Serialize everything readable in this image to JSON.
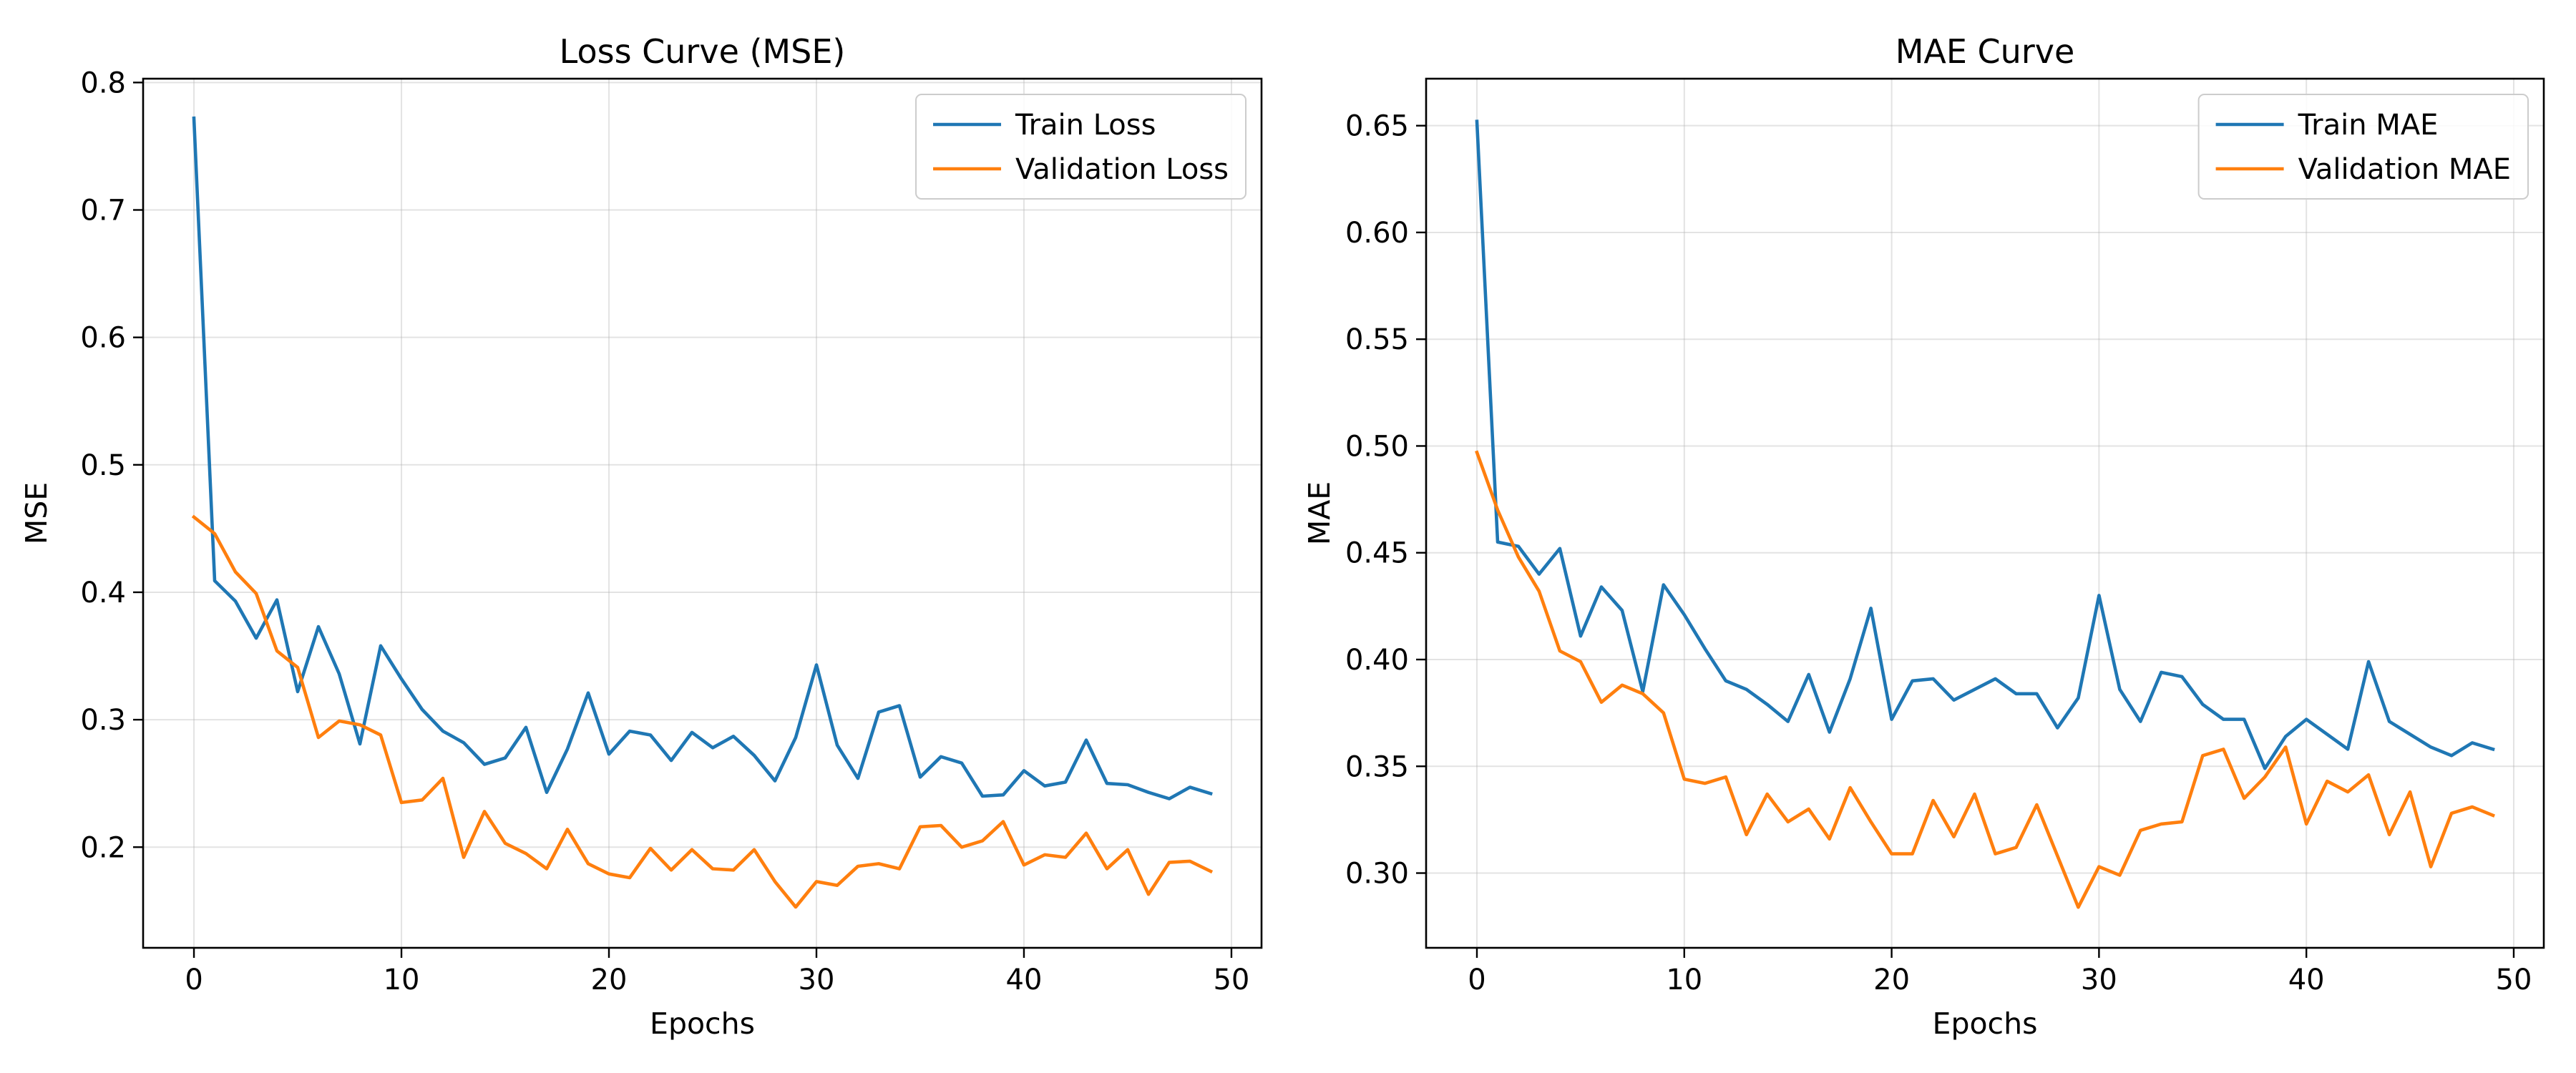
{
  "colors": {
    "train": "#1f77b4",
    "validation": "#ff7f0e"
  },
  "chart_data": [
    {
      "type": "line",
      "title": "Loss Curve (MSE)",
      "xlabel": "Epochs",
      "ylabel": "MSE",
      "xlim": [
        -2.45,
        51.45
      ],
      "ylim": [
        0.121,
        0.803
      ],
      "xticks": [
        0,
        10,
        20,
        30,
        40,
        50
      ],
      "yticks": [
        0.2,
        0.3,
        0.4,
        0.5,
        0.6,
        0.7,
        0.8
      ],
      "tick_decimals": 1,
      "grid": true,
      "legend_position": "top-right",
      "x": [
        0,
        1,
        2,
        3,
        4,
        5,
        6,
        7,
        8,
        9,
        10,
        11,
        12,
        13,
        14,
        15,
        16,
        17,
        18,
        19,
        20,
        21,
        22,
        23,
        24,
        25,
        26,
        27,
        28,
        29,
        30,
        31,
        32,
        33,
        34,
        35,
        36,
        37,
        38,
        39,
        40,
        41,
        42,
        43,
        44,
        45,
        46,
        47,
        48,
        49
      ],
      "series": [
        {
          "name": "Train Loss",
          "color": "#1f77b4",
          "values": [
            0.772,
            0.409,
            0.393,
            0.364,
            0.394,
            0.322,
            0.373,
            0.336,
            0.281,
            0.358,
            0.332,
            0.308,
            0.291,
            0.282,
            0.265,
            0.27,
            0.294,
            0.243,
            0.277,
            0.321,
            0.273,
            0.291,
            0.288,
            0.268,
            0.29,
            0.278,
            0.287,
            0.272,
            0.252,
            0.286,
            0.343,
            0.28,
            0.254,
            0.306,
            0.311,
            0.255,
            0.271,
            0.266,
            0.24,
            0.241,
            0.26,
            0.248,
            0.251,
            0.284,
            0.25,
            0.249,
            0.243,
            0.238,
            0.247,
            0.242
          ]
        },
        {
          "name": "Validation Loss",
          "color": "#ff7f0e",
          "values": [
            0.459,
            0.446,
            0.416,
            0.399,
            0.354,
            0.341,
            0.286,
            0.299,
            0.296,
            0.288,
            0.235,
            0.237,
            0.254,
            0.192,
            0.228,
            0.203,
            0.195,
            0.183,
            0.214,
            0.187,
            0.179,
            0.176,
            0.199,
            0.182,
            0.198,
            0.183,
            0.182,
            0.198,
            0.173,
            0.153,
            0.173,
            0.17,
            0.185,
            0.187,
            0.183,
            0.216,
            0.217,
            0.2,
            0.205,
            0.22,
            0.186,
            0.194,
            0.192,
            0.211,
            0.183,
            0.198,
            0.163,
            0.188,
            0.189,
            0.181
          ]
        }
      ]
    },
    {
      "type": "line",
      "title": "MAE Curve",
      "xlabel": "Epochs",
      "ylabel": "MAE",
      "xlim": [
        -2.45,
        51.45
      ],
      "ylim": [
        0.265,
        0.672
      ],
      "xticks": [
        0,
        10,
        20,
        30,
        40,
        50
      ],
      "yticks": [
        0.3,
        0.35,
        0.4,
        0.45,
        0.5,
        0.55,
        0.6,
        0.65
      ],
      "tick_decimals": 2,
      "grid": true,
      "legend_position": "top-right",
      "x": [
        0,
        1,
        2,
        3,
        4,
        5,
        6,
        7,
        8,
        9,
        10,
        11,
        12,
        13,
        14,
        15,
        16,
        17,
        18,
        19,
        20,
        21,
        22,
        23,
        24,
        25,
        26,
        27,
        28,
        29,
        30,
        31,
        32,
        33,
        34,
        35,
        36,
        37,
        38,
        39,
        40,
        41,
        42,
        43,
        44,
        45,
        46,
        47,
        48,
        49
      ],
      "series": [
        {
          "name": "Train MAE",
          "color": "#1f77b4",
          "values": [
            0.652,
            0.455,
            0.453,
            0.44,
            0.452,
            0.411,
            0.434,
            0.423,
            0.385,
            0.435,
            0.421,
            0.405,
            0.39,
            0.386,
            0.379,
            0.371,
            0.393,
            0.366,
            0.391,
            0.424,
            0.372,
            0.39,
            0.391,
            0.381,
            0.386,
            0.391,
            0.384,
            0.384,
            0.368,
            0.382,
            0.43,
            0.386,
            0.371,
            0.394,
            0.392,
            0.379,
            0.372,
            0.372,
            0.349,
            0.364,
            0.372,
            0.365,
            0.358,
            0.399,
            0.371,
            0.365,
            0.359,
            0.355,
            0.361,
            0.358
          ]
        },
        {
          "name": "Validation MAE",
          "color": "#ff7f0e",
          "values": [
            0.497,
            0.47,
            0.448,
            0.432,
            0.404,
            0.399,
            0.38,
            0.388,
            0.384,
            0.375,
            0.344,
            0.342,
            0.345,
            0.318,
            0.337,
            0.324,
            0.33,
            0.316,
            0.34,
            0.324,
            0.309,
            0.309,
            0.334,
            0.317,
            0.337,
            0.309,
            0.312,
            0.332,
            0.308,
            0.284,
            0.303,
            0.299,
            0.32,
            0.323,
            0.324,
            0.355,
            0.358,
            0.335,
            0.345,
            0.359,
            0.323,
            0.343,
            0.338,
            0.346,
            0.318,
            0.338,
            0.303,
            0.328,
            0.331,
            0.327
          ]
        }
      ]
    }
  ]
}
